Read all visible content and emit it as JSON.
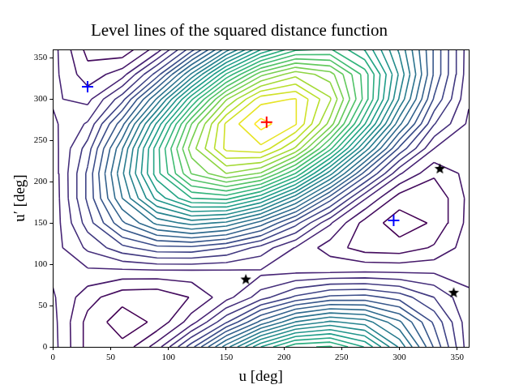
{
  "chart_data": {
    "type": "contour",
    "title": "Level lines of the squared distance function",
    "x_label": "u [deg]",
    "y_label": "u′ [deg]",
    "xlim": [
      0,
      360
    ],
    "ylim": [
      0,
      360
    ],
    "xticks": [
      0,
      50,
      100,
      150,
      200,
      250,
      300,
      350
    ],
    "yticks": [
      0,
      50,
      100,
      150,
      200,
      250,
      300,
      350
    ],
    "x": [
      0,
      30,
      60,
      90,
      120,
      150,
      180,
      210,
      240,
      270,
      300,
      330,
      360
    ],
    "y": [
      0,
      30,
      60,
      90,
      120,
      150,
      180,
      210,
      240,
      270,
      300,
      330,
      360
    ],
    "z": [
      [
        2.09,
        1.68,
        1.62,
        1.95,
        2.57,
        3.31,
        3.98,
        4.4,
        4.45,
        4.12,
        3.5,
        2.76,
        2.09
      ],
      [
        2.08,
        1.68,
        1.5,
        1.61,
        1.96,
        2.46,
        2.98,
        3.39,
        3.56,
        3.46,
        3.11,
        2.6,
        2.08
      ],
      [
        2.05,
        1.79,
        1.63,
        1.61,
        1.74,
        1.97,
        2.26,
        2.51,
        2.67,
        2.69,
        2.57,
        2.33,
        2.05
      ],
      [
        2.0,
        1.99,
        1.97,
        1.97,
        1.97,
        1.98,
        2.0,
        2.02,
        2.03,
        2.04,
        2.03,
        2.02,
        2.0
      ],
      [
        1.96,
        2.21,
        2.43,
        2.58,
        2.59,
        2.48,
        2.27,
        2.02,
        1.8,
        1.66,
        1.64,
        1.75,
        1.96
      ],
      [
        1.93,
        2.4,
        2.9,
        3.27,
        3.44,
        3.34,
        3.01,
        2.54,
        2.05,
        1.67,
        1.5,
        1.6,
        1.93
      ],
      [
        1.92,
        2.51,
        3.23,
        3.88,
        4.28,
        4.33,
        4.01,
        3.42,
        2.7,
        2.05,
        1.65,
        1.6,
        1.92
      ],
      [
        1.93,
        2.51,
        3.35,
        4.22,
        4.89,
        5.18,
        5.01,
        4.43,
        3.59,
        2.72,
        2.05,
        1.76,
        1.93
      ],
      [
        1.96,
        2.4,
        3.22,
        4.22,
        5.11,
        5.67,
        5.74,
        5.3,
        4.47,
        3.48,
        2.59,
        2.03,
        1.96
      ],
      [
        2.0,
        2.2,
        2.88,
        3.86,
        4.88,
        5.66,
        5.99,
        5.8,
        5.12,
        4.14,
        3.12,
        2.34,
        2.0
      ],
      [
        2.05,
        1.98,
        2.42,
        3.25,
        4.25,
        5.16,
        5.72,
        5.79,
        5.35,
        4.52,
        3.51,
        2.61,
        2.05
      ],
      [
        2.08,
        1.79,
        1.96,
        2.55,
        3.41,
        4.3,
        4.98,
        5.28,
        5.1,
        4.51,
        3.65,
        2.76,
        2.08
      ],
      [
        2.09,
        1.68,
        1.62,
        1.95,
        2.57,
        3.31,
        3.98,
        4.4,
        4.45,
        4.12,
        3.5,
        2.76,
        2.09
      ]
    ],
    "levels": [
      1.58,
      1.73,
      1.88,
      2.03,
      2.18,
      2.33,
      2.48,
      2.63,
      2.78,
      2.93,
      3.08,
      3.23,
      3.38,
      3.53,
      3.68,
      3.83,
      3.98,
      4.13,
      4.28,
      4.43,
      4.58,
      4.73,
      4.88,
      5.03,
      5.18,
      5.33,
      5.48,
      5.63,
      5.78,
      5.93
    ],
    "series": [
      {
        "marker": "plus",
        "color": "#ff0000",
        "x": [
          185
        ],
        "values": [
          272
        ]
      },
      {
        "marker": "plus",
        "color": "#0000ff",
        "x": [
          30,
          295
        ],
        "values": [
          315,
          153
        ]
      },
      {
        "marker": "star",
        "color": "#000000",
        "x": [
          167,
          335,
          347
        ],
        "values": [
          82,
          216,
          66
        ]
      }
    ],
    "grid": false
  }
}
